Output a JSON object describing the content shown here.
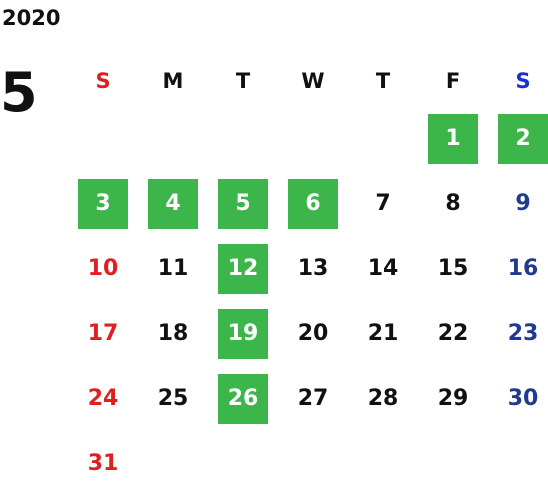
{
  "calendar": {
    "year": "2020",
    "month": "5",
    "weekdays": [
      "S",
      "M",
      "T",
      "W",
      "T",
      "F",
      "S"
    ],
    "colors": {
      "sunday": "#e02020",
      "saturday_header": "#1a2fd6",
      "saturday": "#1f3a8f",
      "weekday": "#111111",
      "highlight_bg": "#3cb54a",
      "highlight_text": "#ffffff"
    },
    "weeks": [
      [
        {
          "day": "",
          "hl": false
        },
        {
          "day": "",
          "hl": false
        },
        {
          "day": "",
          "hl": false
        },
        {
          "day": "",
          "hl": false
        },
        {
          "day": "",
          "hl": false
        },
        {
          "day": "1",
          "hl": true
        },
        {
          "day": "2",
          "hl": true
        }
      ],
      [
        {
          "day": "3",
          "hl": true
        },
        {
          "day": "4",
          "hl": true
        },
        {
          "day": "5",
          "hl": true
        },
        {
          "day": "6",
          "hl": true
        },
        {
          "day": "7",
          "hl": false
        },
        {
          "day": "8",
          "hl": false
        },
        {
          "day": "9",
          "hl": false
        }
      ],
      [
        {
          "day": "10",
          "hl": false
        },
        {
          "day": "11",
          "hl": false
        },
        {
          "day": "12",
          "hl": true
        },
        {
          "day": "13",
          "hl": false
        },
        {
          "day": "14",
          "hl": false
        },
        {
          "day": "15",
          "hl": false
        },
        {
          "day": "16",
          "hl": false
        }
      ],
      [
        {
          "day": "17",
          "hl": false
        },
        {
          "day": "18",
          "hl": false
        },
        {
          "day": "19",
          "hl": true
        },
        {
          "day": "20",
          "hl": false
        },
        {
          "day": "21",
          "hl": false
        },
        {
          "day": "22",
          "hl": false
        },
        {
          "day": "23",
          "hl": false
        }
      ],
      [
        {
          "day": "24",
          "hl": false
        },
        {
          "day": "25",
          "hl": false
        },
        {
          "day": "26",
          "hl": true
        },
        {
          "day": "27",
          "hl": false
        },
        {
          "day": "28",
          "hl": false
        },
        {
          "day": "29",
          "hl": false
        },
        {
          "day": "30",
          "hl": false
        }
      ],
      [
        {
          "day": "31",
          "hl": false
        },
        {
          "day": "",
          "hl": false
        },
        {
          "day": "",
          "hl": false
        },
        {
          "day": "",
          "hl": false
        },
        {
          "day": "",
          "hl": false
        },
        {
          "day": "",
          "hl": false
        },
        {
          "day": "",
          "hl": false
        }
      ]
    ]
  }
}
